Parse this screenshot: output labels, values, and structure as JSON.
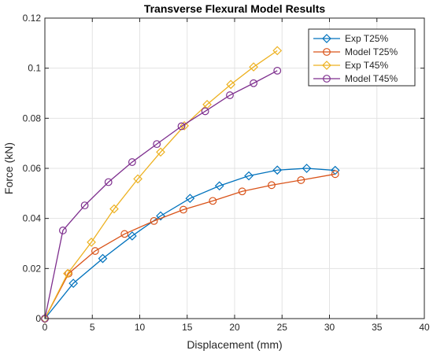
{
  "chart_data": {
    "type": "line",
    "title": "Transverse Flexural Model Results",
    "xlabel": "Displacement (mm)",
    "ylabel": "Force (kN)",
    "xlim": [
      0,
      40
    ],
    "ylim": [
      0,
      0.12
    ],
    "xticks": [
      "0",
      "5",
      "10",
      "15",
      "20",
      "25",
      "30",
      "35",
      "40"
    ],
    "yticks": [
      "0",
      "0.02",
      "0.04",
      "0.06",
      "0.08",
      "0.1",
      "0.12"
    ],
    "grid": true,
    "legend_position": "top-right",
    "series": [
      {
        "name": "Exp T25%",
        "color": "#0072BD",
        "marker": "diamond",
        "x": [
          0,
          3.0,
          6.1,
          9.2,
          12.2,
          15.3,
          18.4,
          21.5,
          24.5,
          27.6,
          30.6
        ],
        "y": [
          0.0,
          0.0141,
          0.024,
          0.033,
          0.041,
          0.048,
          0.053,
          0.057,
          0.0593,
          0.06,
          0.0592
        ]
      },
      {
        "name": "Model T25%",
        "color": "#D95319",
        "marker": "circle",
        "x": [
          0,
          2.5,
          5.3,
          8.4,
          11.5,
          14.6,
          17.7,
          20.8,
          23.9,
          27.0,
          30.6
        ],
        "y": [
          0.0,
          0.018,
          0.027,
          0.0338,
          0.039,
          0.0435,
          0.047,
          0.0508,
          0.0533,
          0.0553,
          0.0577
        ]
      },
      {
        "name": "Exp T45%",
        "color": "#EDB120",
        "marker": "diamond",
        "x": [
          0,
          2.4,
          4.9,
          7.3,
          9.8,
          12.2,
          14.7,
          17.1,
          19.6,
          22.0,
          24.5
        ],
        "y": [
          0.0,
          0.018,
          0.0305,
          0.0438,
          0.0558,
          0.0665,
          0.077,
          0.0855,
          0.0935,
          0.1005,
          0.107
        ]
      },
      {
        "name": "Model T45%",
        "color": "#7E2F8E",
        "marker": "circle",
        "x": [
          0,
          1.9,
          4.2,
          6.7,
          9.2,
          11.8,
          14.4,
          16.9,
          19.5,
          22.0,
          24.5
        ],
        "y": [
          0.0,
          0.0352,
          0.0452,
          0.0545,
          0.0625,
          0.0697,
          0.0768,
          0.0828,
          0.0892,
          0.094,
          0.099
        ]
      }
    ]
  }
}
